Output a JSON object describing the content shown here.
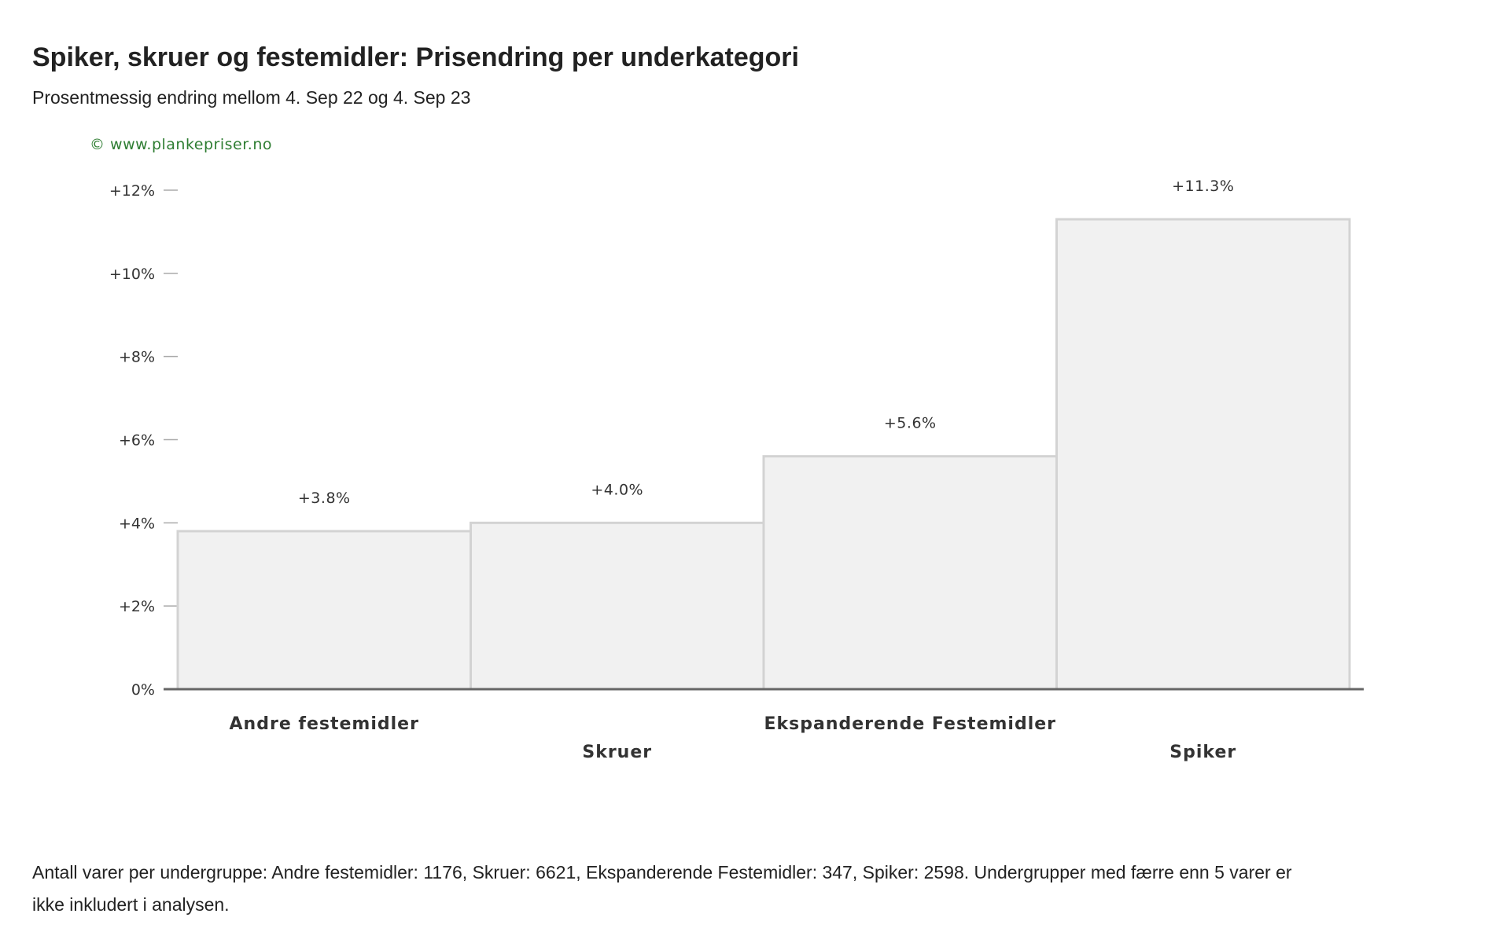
{
  "title": "Spiker, skruer og festemidler: Prisendring per underkategori",
  "subtitle": "Prosentmessig endring mellom 4. Sep 22 og 4. Sep 23",
  "copyright": "© www.plankepriser.no",
  "footnote": "Antall varer per undergruppe: Andre festemidler: 1176, Skruer: 6621, Ekspanderende Festemidler: 347, Spiker: 2598. Undergrupper med færre enn 5 varer er ikke inkludert i analysen.",
  "colors": {
    "bar_fill": "#f1f1f1",
    "bar_stroke": "#d3d3d3",
    "axis": "#666666",
    "tick": "#aaaaaa",
    "copyright": "#2e7d32"
  },
  "chart_data": {
    "type": "bar",
    "categories": [
      "Andre festemidler",
      "Skruer",
      "Ekspanderende Festemidler",
      "Spiker"
    ],
    "values": [
      3.8,
      4.0,
      5.6,
      11.3
    ],
    "value_labels": [
      "+3.8%",
      "+4.0%",
      "+5.6%",
      "+11.3%"
    ],
    "yticks": [
      0,
      2,
      4,
      6,
      8,
      10,
      12
    ],
    "ytick_labels": [
      "0%",
      "+2%",
      "+4%",
      "+6%",
      "+8%",
      "+10%",
      "+12%"
    ],
    "ylim": [
      0,
      12
    ],
    "grid": false,
    "legend": "none",
    "xlabel": "",
    "ylabel": ""
  }
}
